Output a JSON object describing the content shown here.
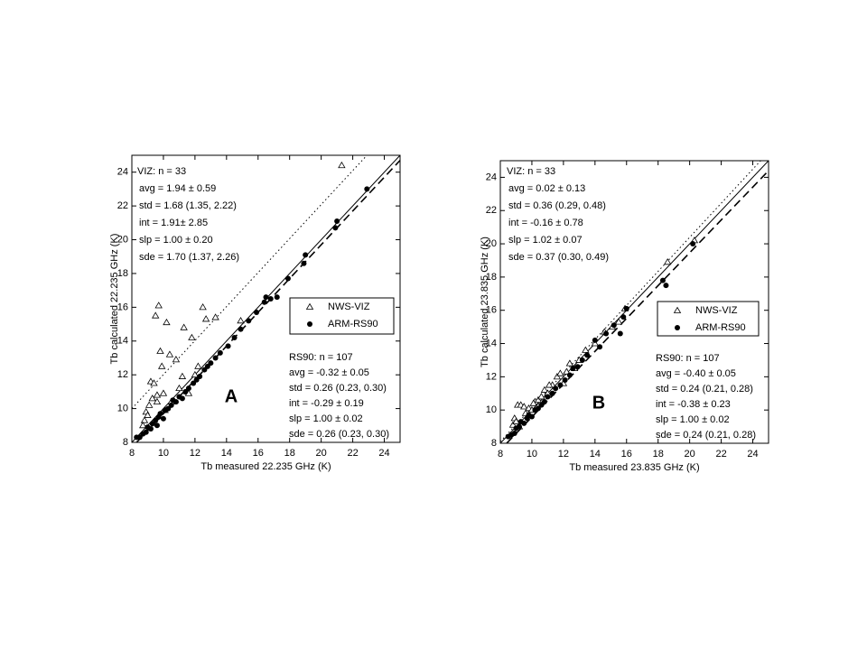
{
  "chart_data": [
    {
      "type": "scatter",
      "panel_label": "A",
      "xlabel": "Tb measured   22.235 GHz   (K)",
      "ylabel": "Tb calculated   22.235 GHz   (K)",
      "xlim": [
        8,
        25
      ],
      "ylim": [
        8,
        25
      ],
      "xticks": [
        8,
        10,
        12,
        14,
        16,
        18,
        20,
        22,
        24
      ],
      "yticks": [
        8,
        10,
        12,
        14,
        16,
        18,
        20,
        22,
        24
      ],
      "legend": "center right",
      "series": [
        {
          "name": "NWS-VIZ",
          "marker": "triangle",
          "color": "#000000",
          "x": [
            8.8,
            8.9,
            9.1,
            9.2,
            9.4,
            9.5,
            9.6,
            9.7,
            9.8,
            9.9,
            10.0,
            10.2,
            10.4,
            10.8,
            11.0,
            11.3,
            11.5,
            11.8,
            12.2,
            12.5,
            12.7,
            13.3,
            14.9,
            21.3,
            9.3,
            10.5,
            11.2,
            12.0,
            9.0,
            9.6,
            10.1,
            8.7,
            11.6
          ],
          "y": [
            9.3,
            9.8,
            10.2,
            11.6,
            11.5,
            15.5,
            10.8,
            16.1,
            13.4,
            12.5,
            10.9,
            15.1,
            13.2,
            12.9,
            11.2,
            14.8,
            11.0,
            14.2,
            12.5,
            16.0,
            15.3,
            15.4,
            15.2,
            24.4,
            10.6,
            10.4,
            11.9,
            12.0,
            9.6,
            10.4,
            9.9,
            9.0,
            10.9
          ]
        },
        {
          "name": "ARM-RS90",
          "marker": "dot",
          "color": "#000000",
          "x": [
            8.3,
            8.5,
            8.7,
            8.9,
            9.0,
            9.2,
            9.3,
            9.5,
            9.6,
            9.7,
            9.8,
            10.0,
            10.1,
            10.3,
            10.5,
            10.6,
            10.8,
            11.0,
            11.2,
            11.4,
            11.6,
            11.9,
            12.1,
            12.3,
            12.6,
            12.8,
            13.0,
            13.3,
            13.6,
            14.1,
            14.5,
            14.9,
            15.4,
            15.9,
            16.4,
            16.5,
            16.8,
            17.2,
            17.9,
            18.9,
            19.0,
            20.9,
            21.0,
            22.9
          ],
          "y": [
            8.3,
            8.3,
            8.5,
            8.6,
            8.9,
            8.8,
            9.1,
            9.3,
            9.0,
            9.5,
            9.7,
            9.4,
            9.9,
            10.0,
            10.2,
            10.5,
            10.4,
            10.7,
            10.6,
            11.0,
            11.2,
            11.5,
            11.7,
            11.9,
            12.3,
            12.5,
            12.7,
            13.0,
            13.3,
            13.7,
            14.2,
            14.7,
            15.2,
            15.7,
            16.3,
            16.6,
            16.5,
            16.6,
            17.7,
            18.6,
            19.1,
            20.7,
            21.1,
            23.0
          ]
        }
      ],
      "fit_lines": [
        {
          "style": "solid",
          "x": [
            8,
            25
          ],
          "y": [
            8,
            25
          ]
        },
        {
          "style": "dotted",
          "x": [
            8,
            22.9
          ],
          "y": [
            10,
            25
          ]
        },
        {
          "style": "dashed",
          "x": [
            8.3,
            25
          ],
          "y": [
            8,
            24.7
          ]
        }
      ],
      "annotations": {
        "viz": [
          "VIZ: n = 33",
          "avg = 1.94 ± 0.59",
          "std = 1.68 (1.35, 2.22)",
          "int = 1.91± 2.85",
          "slp = 1.00 ± 0.20",
          "sde = 1.70 (1.37, 2.26)"
        ],
        "rs90": [
          "RS90: n = 107",
          "avg = -0.32 ± 0.05",
          "std = 0.26 (0.23, 0.30)",
          "int = -0.29 ± 0.19",
          "slp = 1.00 ± 0.02",
          "sde = 0.26 (0.23, 0.30)"
        ]
      }
    },
    {
      "type": "scatter",
      "panel_label": "B",
      "xlabel": "Tb measured  23.835 GHz   (K)",
      "ylabel": "Tb calculated  23.835 GHz   (K)",
      "xlim": [
        8,
        25
      ],
      "ylim": [
        8,
        25
      ],
      "xticks": [
        8,
        10,
        12,
        14,
        16,
        18,
        20,
        22,
        24
      ],
      "yticks": [
        8,
        10,
        12,
        14,
        16,
        18,
        20,
        22,
        24
      ],
      "legend": "center right",
      "series": [
        {
          "name": "NWS-VIZ",
          "marker": "triangle",
          "color": "#000000",
          "x": [
            8.8,
            8.9,
            9.0,
            9.1,
            9.3,
            9.5,
            9.6,
            9.8,
            10.0,
            10.2,
            10.4,
            10.6,
            10.8,
            11.0,
            11.3,
            11.6,
            11.8,
            12.0,
            12.4,
            12.7,
            13.0,
            13.4,
            14.0,
            14.6,
            15.1,
            15.5,
            15.9,
            18.6,
            20.3,
            9.2,
            10.1,
            11.1,
            12.2
          ],
          "y": [
            9.1,
            9.5,
            9.3,
            10.3,
            10.3,
            10.2,
            9.8,
            10.1,
            10.0,
            10.5,
            10.6,
            10.8,
            11.2,
            11.0,
            11.5,
            12.0,
            12.2,
            11.6,
            12.8,
            12.5,
            13.0,
            13.6,
            14.0,
            14.7,
            15.0,
            15.3,
            16.1,
            18.9,
            20.2,
            9.0,
            10.4,
            11.5,
            12.3
          ]
        },
        {
          "name": "ARM-RS90",
          "marker": "dot",
          "color": "#000000",
          "x": [
            8.5,
            8.7,
            8.9,
            9.0,
            9.2,
            9.3,
            9.5,
            9.7,
            9.8,
            10.0,
            10.2,
            10.4,
            10.6,
            10.8,
            11.0,
            11.3,
            11.5,
            11.8,
            12.1,
            12.4,
            12.6,
            12.9,
            13.2,
            13.5,
            14.0,
            14.3,
            14.7,
            15.2,
            15.6,
            15.8,
            16.0,
            18.3,
            18.5,
            20.2
          ],
          "y": [
            8.4,
            8.5,
            8.6,
            8.9,
            9.0,
            9.3,
            9.2,
            9.5,
            9.7,
            9.6,
            10.0,
            10.1,
            10.3,
            10.5,
            10.8,
            11.0,
            11.3,
            11.5,
            11.8,
            12.1,
            12.5,
            12.6,
            13.0,
            13.3,
            14.2,
            13.8,
            14.6,
            15.1,
            14.6,
            15.6,
            16.1,
            17.8,
            17.5,
            20.0
          ]
        }
      ],
      "fit_lines": [
        {
          "style": "solid",
          "x": [
            8,
            25
          ],
          "y": [
            8,
            25
          ]
        },
        {
          "style": "dotted",
          "x": [
            8,
            24.5
          ],
          "y": [
            8.1,
            25
          ]
        },
        {
          "style": "dashed",
          "x": [
            8.4,
            25
          ],
          "y": [
            8,
            24.4
          ]
        }
      ],
      "annotations": {
        "viz": [
          "VIZ: n = 33",
          "avg = 0.02 ±  0.13",
          "std = 0.36 (0.29, 0.48)",
          "int = -0.16 ± 0.78",
          "slp = 1.02 ± 0.07",
          "sde = 0.37 (0.30, 0.49)"
        ],
        "rs90": [
          "RS90: n = 107",
          "avg = -0.40 ±  0.05",
          "std = 0.24 (0.21, 0.28)",
          "int = -0.38 ±  0.23",
          "slp = 1.00 ±  0.02",
          "sde = 0.24 (0.21, 0.28)"
        ]
      }
    }
  ]
}
